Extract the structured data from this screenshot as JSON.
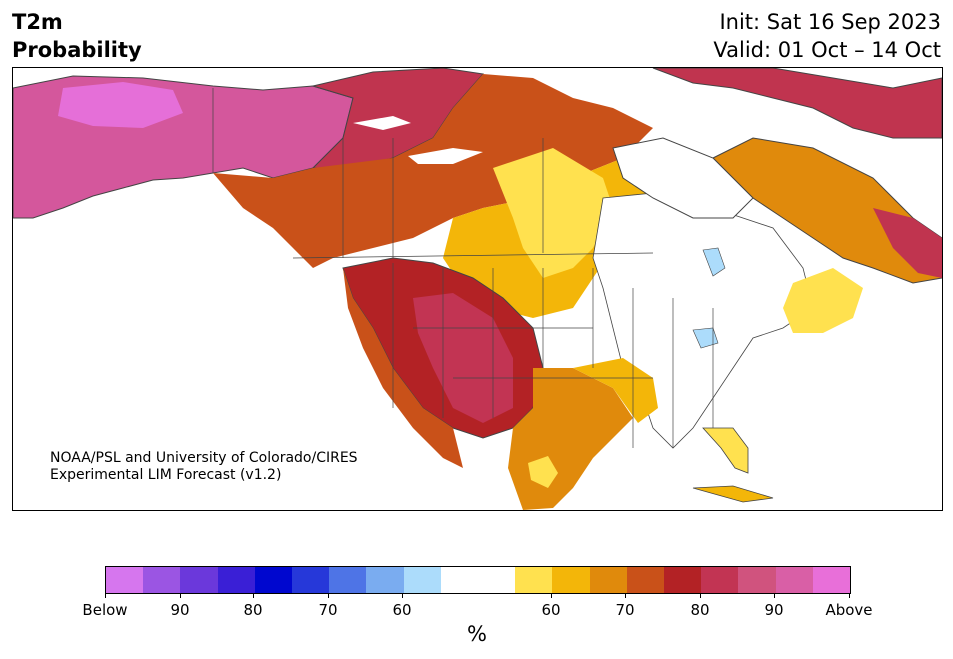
{
  "header": {
    "title_line1": "T2m",
    "title_line2": "Probability",
    "init": "Init: Sat 16 Sep 2023",
    "valid": "Valid: 01 Oct – 14 Oct"
  },
  "map": {
    "credit_line1": "NOAA/PSL and University of Colorado/CIRES",
    "credit_line2": "Experimental LIM Forecast (v1.2)",
    "region": "North America"
  },
  "colorbar": {
    "unit": "%",
    "colors": [
      "#d676ee",
      "#9b55e3",
      "#6b38db",
      "#3a1fd6",
      "#0007cf",
      "#2638d9",
      "#4e74e6",
      "#7aacf0",
      "#acdcfb",
      "#ffffff",
      "#ffffff",
      "#ffe14f",
      "#f3b609",
      "#e08a0c",
      "#c95119",
      "#b32225",
      "#c23453",
      "#d0537e",
      "#d95fa6",
      "#e86fd9"
    ],
    "ticks": [
      {
        "label": "Below"
      },
      {
        "label": "90"
      },
      {
        "label": "80"
      },
      {
        "label": "70"
      },
      {
        "label": "60"
      },
      {
        "label": "60"
      },
      {
        "label": "70"
      },
      {
        "label": "80"
      },
      {
        "label": "90"
      },
      {
        "label": "Above"
      }
    ]
  }
}
